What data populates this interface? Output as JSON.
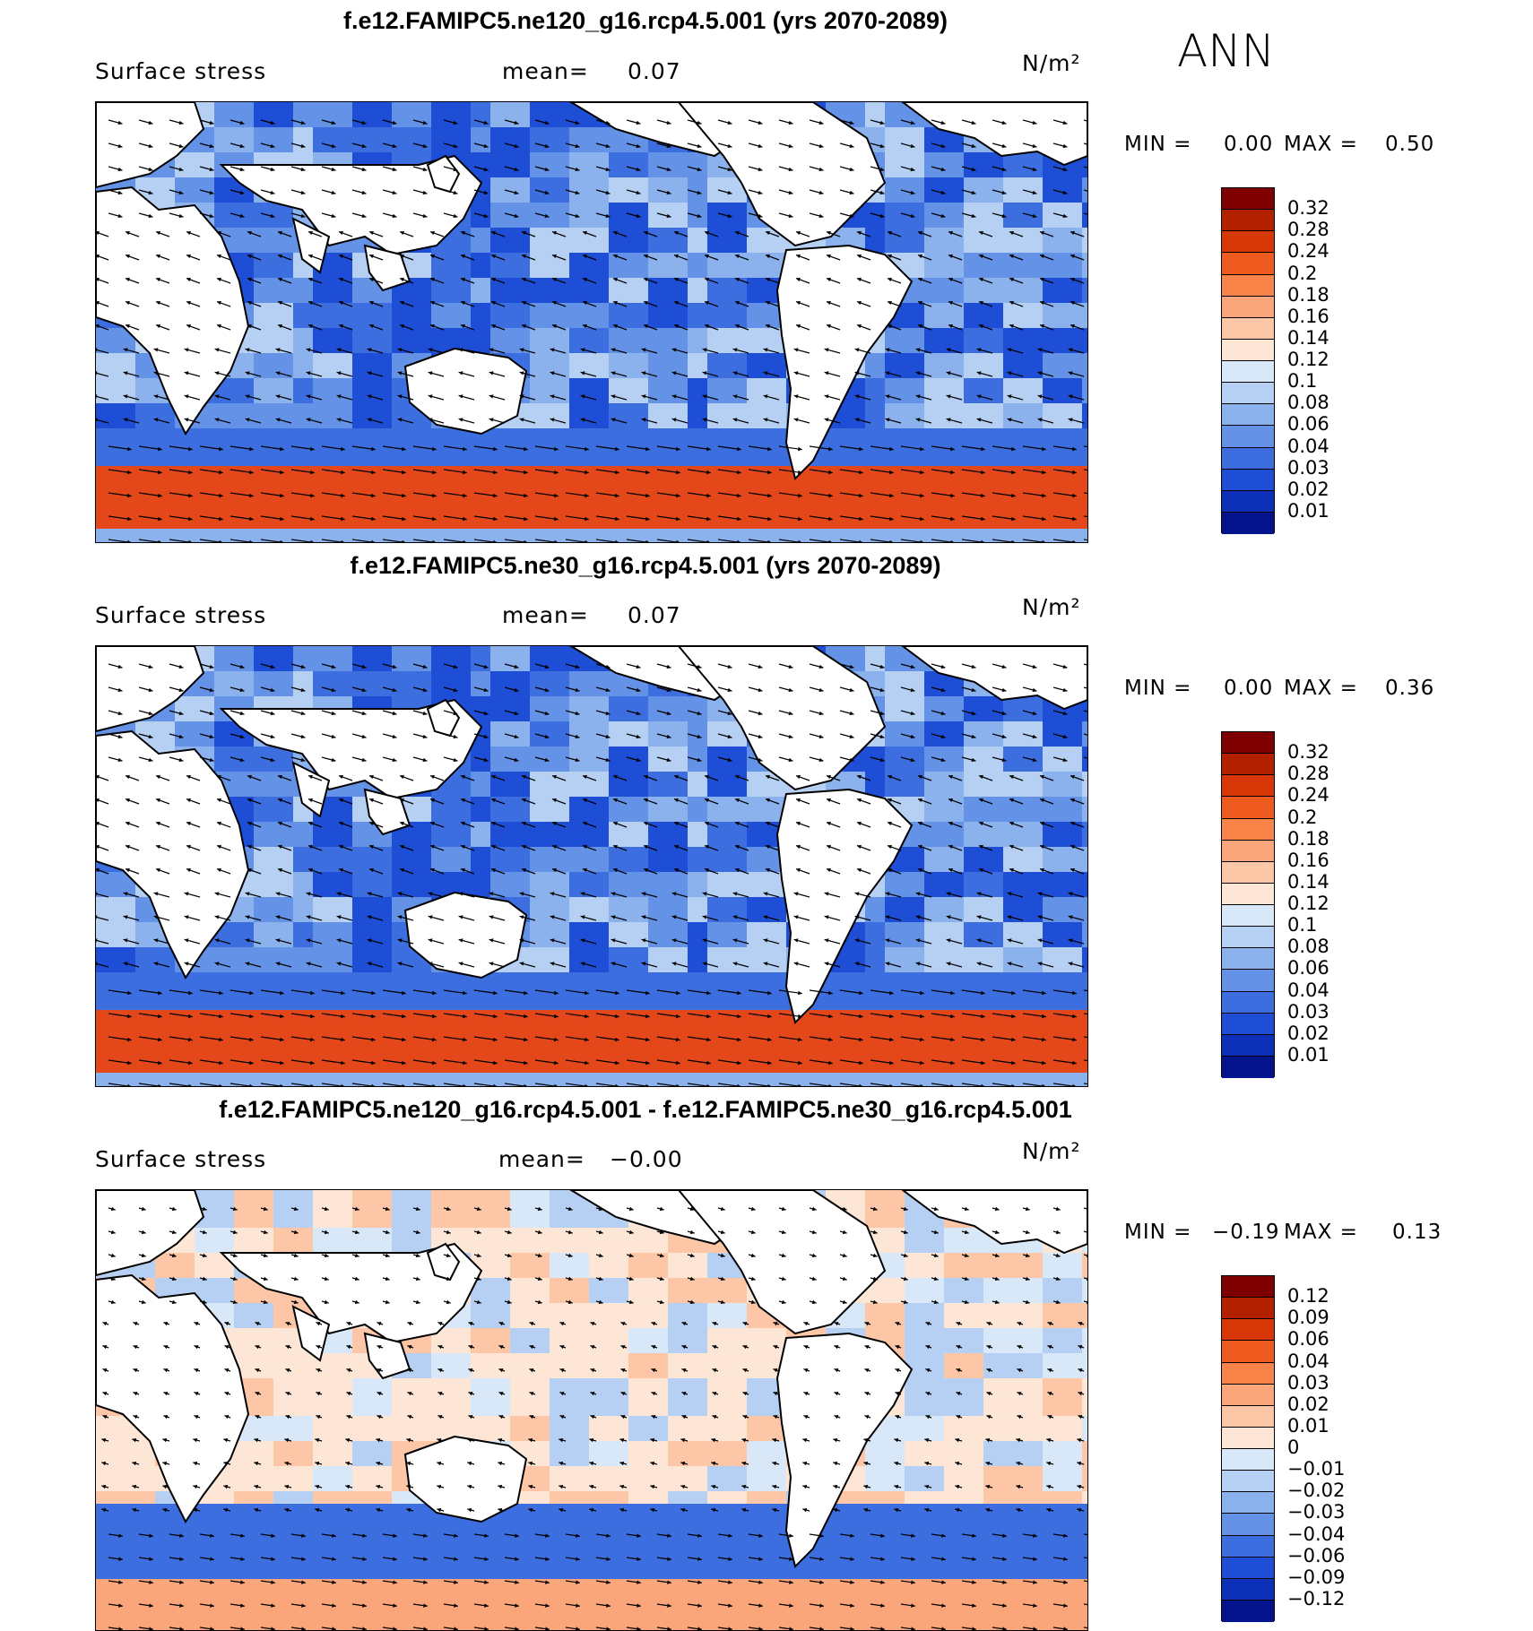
{
  "season": "ANN",
  "panels": [
    {
      "title": "f.e12.FAMIPC5.ne120_g16.rcp4.5.001 (yrs 2070-2089)",
      "variable": "Surface stress",
      "mean_label": "mean=",
      "mean_value": "0.07",
      "units": "N/m²",
      "min_label": "MIN =",
      "min_value": "0.00",
      "max_label": "MAX =",
      "max_value": "0.50",
      "colorbar": {
        "labels": [
          "0.32",
          "0.28",
          "0.24",
          "0.2",
          "0.18",
          "0.16",
          "0.14",
          "0.12",
          "0.1",
          "0.08",
          "0.06",
          "0.04",
          "0.03",
          "0.02",
          "0.01"
        ],
        "colors": [
          "#7f0000",
          "#b22000",
          "#d83808",
          "#ef5a1e",
          "#f9844a",
          "#fba57a",
          "#fdc6a6",
          "#fde6d6",
          "#d8e8f8",
          "#b6d0f4",
          "#8cb2ee",
          "#6492e6",
          "#3c6ee0",
          "#1e4ed6",
          "#0c30b8",
          "#03148c"
        ]
      }
    },
    {
      "title": "f.e12.FAMIPC5.ne30_g16.rcp4.5.001 (yrs 2070-2089)",
      "variable": "Surface stress",
      "mean_label": "mean=",
      "mean_value": "0.07",
      "units": "N/m²",
      "min_label": "MIN =",
      "min_value": "0.00",
      "max_label": "MAX =",
      "max_value": "0.36",
      "colorbar": {
        "labels": [
          "0.32",
          "0.28",
          "0.24",
          "0.2",
          "0.18",
          "0.16",
          "0.14",
          "0.12",
          "0.1",
          "0.08",
          "0.06",
          "0.04",
          "0.03",
          "0.02",
          "0.01"
        ],
        "colors": [
          "#7f0000",
          "#b22000",
          "#d83808",
          "#ef5a1e",
          "#f9844a",
          "#fba57a",
          "#fdc6a6",
          "#fde6d6",
          "#d8e8f8",
          "#b6d0f4",
          "#8cb2ee",
          "#6492e6",
          "#3c6ee0",
          "#1e4ed6",
          "#0c30b8",
          "#03148c"
        ]
      }
    },
    {
      "title": "f.e12.FAMIPC5.ne120_g16.rcp4.5.001 - f.e12.FAMIPC5.ne30_g16.rcp4.5.001",
      "variable": "Surface stress",
      "mean_label": "mean=",
      "mean_value": "−0.00",
      "units": "N/m²",
      "min_label": "MIN =",
      "min_value": "−0.19",
      "max_label": "MAX =",
      "max_value": "0.13",
      "colorbar": {
        "labels": [
          "0.12",
          "0.09",
          "0.06",
          "0.04",
          "0.03",
          "0.02",
          "0.01",
          "0",
          "−0.01",
          "−0.02",
          "−0.03",
          "−0.04",
          "−0.06",
          "−0.09",
          "−0.12"
        ],
        "colors": [
          "#7f0000",
          "#b22000",
          "#d83808",
          "#ef5a1e",
          "#f9844a",
          "#fba57a",
          "#fdc6a6",
          "#fde6d6",
          "#d8e8f8",
          "#b6d0f4",
          "#8cb2ee",
          "#6492e6",
          "#3c6ee0",
          "#1e4ed6",
          "#0c30b8",
          "#03148c"
        ]
      }
    }
  ]
}
